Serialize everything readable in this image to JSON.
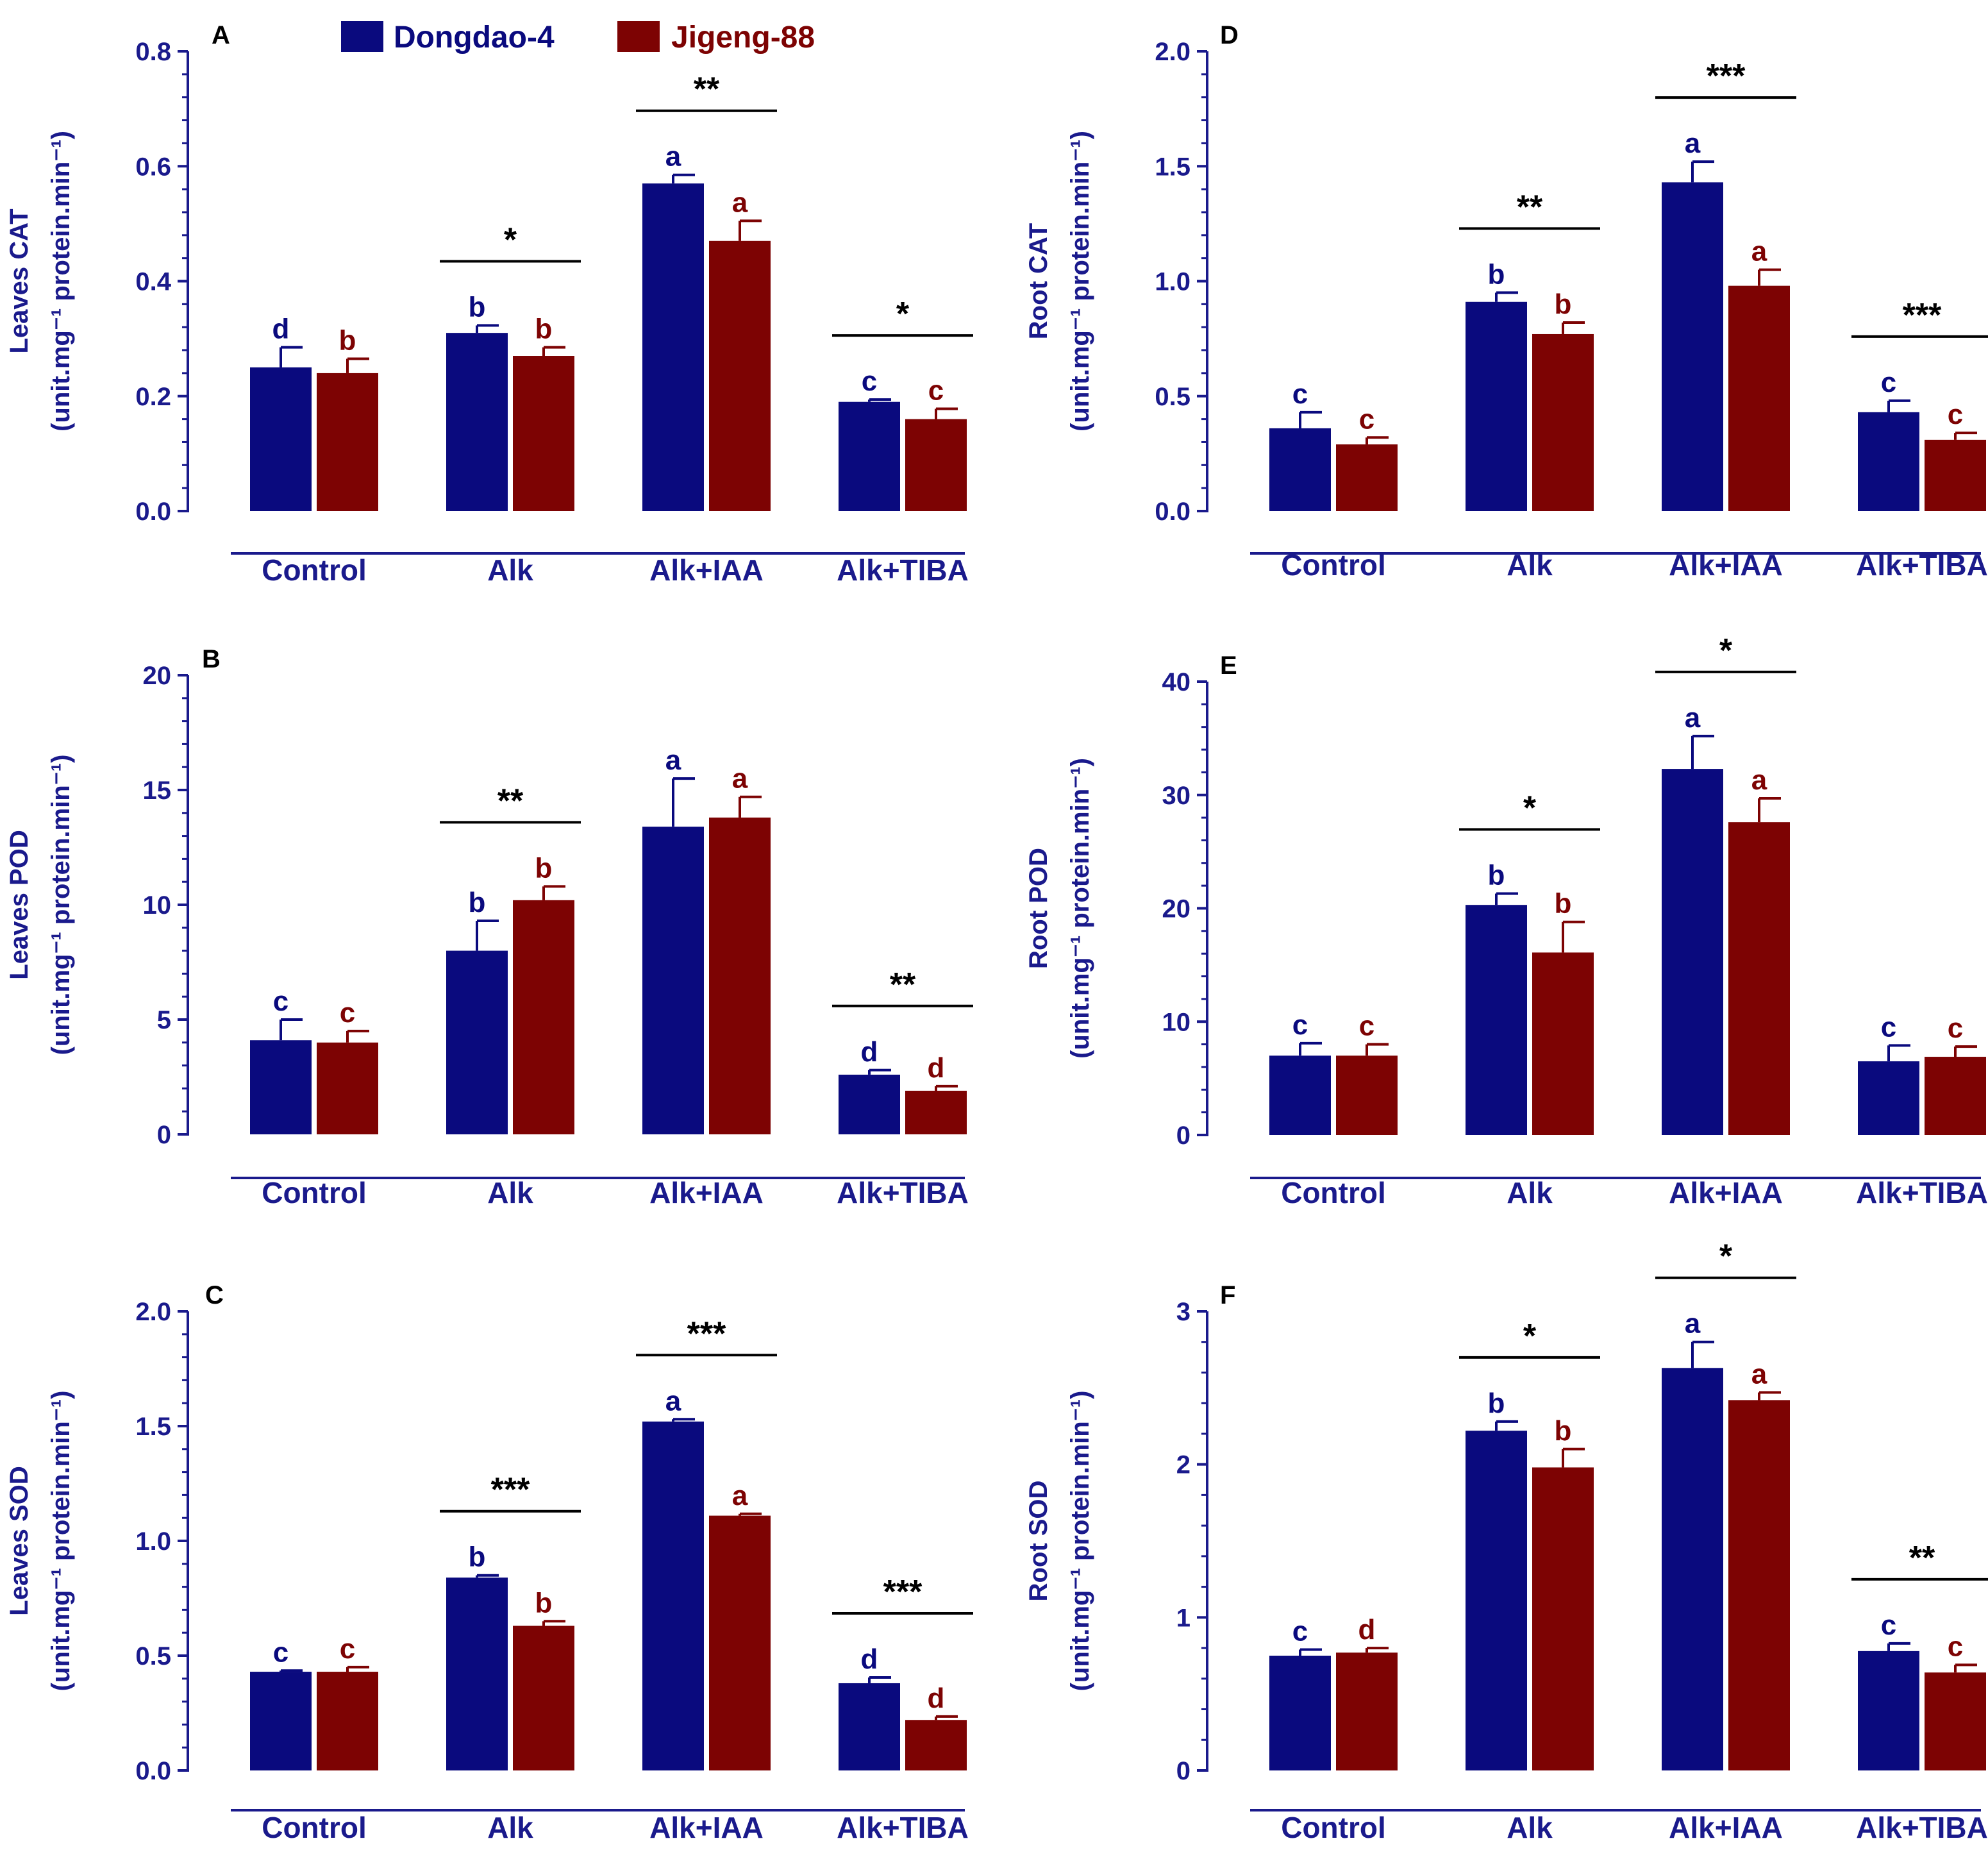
{
  "legend": {
    "items": [
      {
        "name": "Dongdao-4",
        "color": "#0a0a7e"
      },
      {
        "name": "Jigeng-88",
        "color": "#7d0303"
      }
    ]
  },
  "colors": {
    "axis": "#1a1a8c",
    "series1": "#0a0a7e",
    "series2": "#7d0303",
    "line": "#000000"
  },
  "chart_data": [
    {
      "id": "A",
      "type": "bar",
      "panel_label": "A",
      "ylabel_line1": "Leaves CAT",
      "ylabel_line2": "(unit.mg⁻¹ protein.min⁻¹)",
      "categories": [
        "Control",
        "Alk",
        "Alk+IAA",
        "Alk+TIBA"
      ],
      "ylim": [
        0,
        0.8
      ],
      "yticks": [
        0.0,
        0.2,
        0.4,
        0.6,
        0.8
      ],
      "tick_labels": [
        "0.0",
        "0.2",
        "0.4",
        "0.6",
        "0.8"
      ],
      "series": [
        {
          "name": "Dongdao-4",
          "values": [
            0.25,
            0.31,
            0.57,
            0.19
          ],
          "errors": [
            0.035,
            0.013,
            0.015,
            0.004
          ],
          "letters": [
            "d",
            "b",
            "a",
            "c"
          ]
        },
        {
          "name": "Jigeng-88",
          "values": [
            0.24,
            0.27,
            0.47,
            0.16
          ],
          "errors": [
            0.025,
            0.015,
            0.035,
            0.018
          ],
          "letters": [
            "b",
            "b",
            "a",
            "c"
          ]
        }
      ],
      "significance": [
        {
          "group": 1,
          "label": "*"
        },
        {
          "group": 2,
          "label": "**"
        },
        {
          "group": 3,
          "label": "*"
        }
      ]
    },
    {
      "id": "B",
      "type": "bar",
      "panel_label": "B",
      "ylabel_line1": "Leaves POD",
      "ylabel_line2": "(unit.mg⁻¹ protein.min⁻¹)",
      "categories": [
        "Control",
        "Alk",
        "Alk+IAA",
        "Alk+TIBA"
      ],
      "ylim": [
        0,
        20
      ],
      "yticks": [
        0,
        5,
        10,
        15,
        20
      ],
      "tick_labels": [
        "0",
        "5",
        "10",
        "15",
        "20"
      ],
      "series": [
        {
          "name": "Dongdao-4",
          "values": [
            4.1,
            8.0,
            13.4,
            2.6
          ],
          "errors": [
            0.9,
            1.3,
            2.1,
            0.2
          ],
          "letters": [
            "c",
            "b",
            "a",
            "d"
          ]
        },
        {
          "name": "Jigeng-88",
          "values": [
            4.0,
            10.2,
            13.8,
            1.9
          ],
          "errors": [
            0.5,
            0.6,
            0.9,
            0.2
          ],
          "letters": [
            "c",
            "b",
            "a",
            "d"
          ]
        }
      ],
      "significance": [
        {
          "group": 1,
          "label": "**"
        },
        {
          "group": 3,
          "label": "**"
        }
      ]
    },
    {
      "id": "C",
      "type": "bar",
      "panel_label": "C",
      "ylabel_line1": "Leaves SOD",
      "ylabel_line2": "(unit.mg⁻¹ protein.min⁻¹)",
      "categories": [
        "Control",
        "Alk",
        "Alk+IAA",
        "Alk+TIBA"
      ],
      "ylim": [
        0,
        2.0
      ],
      "yticks": [
        0.0,
        0.5,
        1.0,
        1.5,
        2.0
      ],
      "tick_labels": [
        "0.0",
        "0.5",
        "1.0",
        "1.5",
        "2.0"
      ],
      "series": [
        {
          "name": "Dongdao-4",
          "values": [
            0.43,
            0.84,
            1.52,
            0.38
          ],
          "errors": [
            0.005,
            0.01,
            0.01,
            0.025
          ],
          "letters": [
            "c",
            "b",
            "a",
            "d"
          ]
        },
        {
          "name": "Jigeng-88",
          "values": [
            0.43,
            0.63,
            1.11,
            0.22
          ],
          "errors": [
            0.02,
            0.02,
            0.008,
            0.015
          ],
          "letters": [
            "c",
            "b",
            "a",
            "d"
          ]
        }
      ],
      "significance": [
        {
          "group": 1,
          "label": "***"
        },
        {
          "group": 2,
          "label": "***"
        },
        {
          "group": 3,
          "label": "***"
        }
      ]
    },
    {
      "id": "D",
      "type": "bar",
      "panel_label": "D",
      "ylabel_line1": "Root  CAT",
      "ylabel_line2": "(unit.mg⁻¹ protein.min⁻¹)",
      "categories": [
        "Control",
        "Alk",
        "Alk+IAA",
        "Alk+TIBA"
      ],
      "ylim": [
        0,
        2.0
      ],
      "yticks": [
        0.0,
        0.5,
        1.0,
        1.5,
        2.0
      ],
      "tick_labels": [
        "0.0",
        "0.5",
        "1.0",
        "1.5",
        "2.0"
      ],
      "series": [
        {
          "name": "Dongdao-4",
          "values": [
            0.36,
            0.91,
            1.43,
            0.43
          ],
          "errors": [
            0.07,
            0.04,
            0.09,
            0.05
          ],
          "letters": [
            "c",
            "b",
            "a",
            "c"
          ]
        },
        {
          "name": "Jigeng-88",
          "values": [
            0.29,
            0.77,
            0.98,
            0.31
          ],
          "errors": [
            0.03,
            0.05,
            0.07,
            0.03
          ],
          "letters": [
            "c",
            "b",
            "a",
            "c"
          ]
        }
      ],
      "significance": [
        {
          "group": 1,
          "label": "**"
        },
        {
          "group": 2,
          "label": "***"
        },
        {
          "group": 3,
          "label": "***"
        }
      ]
    },
    {
      "id": "E",
      "type": "bar",
      "panel_label": "E",
      "ylabel_line1": "Root  POD",
      "ylabel_line2": "(unit.mg⁻¹ protein.min⁻¹)",
      "categories": [
        "Control",
        "Alk",
        "Alk+IAA",
        "Alk+TIBA"
      ],
      "ylim": [
        0,
        40
      ],
      "yticks": [
        0,
        10,
        20,
        30,
        40
      ],
      "tick_labels": [
        "0",
        "10",
        "20",
        "30",
        "40"
      ],
      "series": [
        {
          "name": "Dongdao-4",
          "values": [
            7.0,
            20.3,
            32.3,
            6.5
          ],
          "errors": [
            1.1,
            1.0,
            2.9,
            1.4
          ],
          "letters": [
            "c",
            "b",
            "a",
            "c"
          ]
        },
        {
          "name": "Jigeng-88",
          "values": [
            7.0,
            16.1,
            27.6,
            6.9
          ],
          "errors": [
            1.0,
            2.7,
            2.1,
            0.9
          ],
          "letters": [
            "c",
            "b",
            "a",
            "c"
          ]
        }
      ],
      "significance": [
        {
          "group": 1,
          "label": "*"
        },
        {
          "group": 2,
          "label": "*"
        }
      ]
    },
    {
      "id": "F",
      "type": "bar",
      "panel_label": "F",
      "ylabel_line1": "Root SOD",
      "ylabel_line2": "(unit.mg⁻¹ protein.min⁻¹)",
      "categories": [
        "Control",
        "Alk",
        "Alk+IAA",
        "Alk+TIBA"
      ],
      "ylim": [
        0,
        3
      ],
      "yticks": [
        0,
        1,
        2,
        3
      ],
      "tick_labels": [
        "0",
        "1",
        "2",
        "3"
      ],
      "series": [
        {
          "name": "Dongdao-4",
          "values": [
            0.75,
            2.22,
            2.63,
            0.78
          ],
          "errors": [
            0.04,
            0.06,
            0.17,
            0.05
          ],
          "letters": [
            "c",
            "b",
            "a",
            "c"
          ]
        },
        {
          "name": "Jigeng-88",
          "values": [
            0.77,
            1.98,
            2.42,
            0.64
          ],
          "errors": [
            0.03,
            0.12,
            0.05,
            0.05
          ],
          "letters": [
            "d",
            "b",
            "a",
            "c"
          ]
        }
      ],
      "significance": [
        {
          "group": 1,
          "label": "*"
        },
        {
          "group": 2,
          "label": "*"
        },
        {
          "group": 3,
          "label": "**"
        }
      ]
    }
  ]
}
